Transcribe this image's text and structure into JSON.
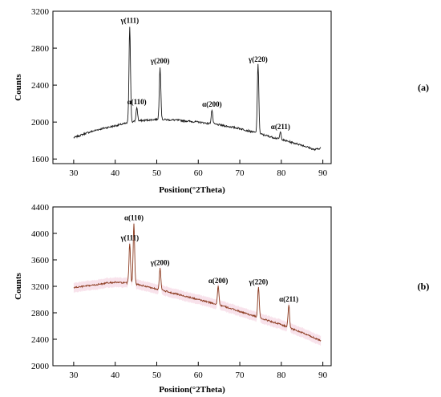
{
  "chart_data": [
    {
      "type": "line",
      "panel_label": "(a)",
      "xlabel": "Position(°2Theta)",
      "ylabel": "Counts",
      "xlim": [
        25,
        92
      ],
      "ylim": [
        1550,
        3200
      ],
      "x_ticks": [
        30,
        40,
        50,
        60,
        70,
        80,
        90
      ],
      "y_ticks": [
        1600,
        2000,
        2400,
        2800,
        3200
      ],
      "line_color": "#1a1a1a",
      "fill_color": null,
      "baseline": [
        [
          30,
          1830
        ],
        [
          33,
          1880
        ],
        [
          36,
          1920
        ],
        [
          40,
          1960
        ],
        [
          45,
          2010
        ],
        [
          50,
          2030
        ],
        [
          55,
          2020
        ],
        [
          60,
          2000
        ],
        [
          65,
          1970
        ],
        [
          70,
          1930
        ],
        [
          75,
          1870
        ],
        [
          80,
          1810
        ],
        [
          85,
          1750
        ],
        [
          88,
          1700
        ],
        [
          89.5,
          1720
        ]
      ],
      "noise": 10,
      "peaks": [
        {
          "x": 43.5,
          "y": 3040,
          "label": "γ(111)"
        },
        {
          "x": 45.2,
          "y": 2160,
          "label": "α(110)"
        },
        {
          "x": 50.8,
          "y": 2600,
          "label": "γ(200)"
        },
        {
          "x": 63.3,
          "y": 2130,
          "label": "α(200)"
        },
        {
          "x": 74.4,
          "y": 2620,
          "label": "γ(220)"
        },
        {
          "x": 79.8,
          "y": 1890,
          "label": "α(211)"
        }
      ]
    },
    {
      "type": "line",
      "panel_label": "(b)",
      "xlabel": "Position(°2Theta)",
      "ylabel": "Counts",
      "xlim": [
        25,
        92
      ],
      "ylim": [
        2000,
        4400
      ],
      "x_ticks": [
        30,
        40,
        50,
        60,
        70,
        80,
        90
      ],
      "y_ticks": [
        2000,
        2400,
        2800,
        3200,
        3600,
        4000,
        4400
      ],
      "line_color": "#8b3a1e",
      "fill_color": "#f6dbe6",
      "baseline": [
        [
          30,
          3180
        ],
        [
          35,
          3220
        ],
        [
          38,
          3250
        ],
        [
          40,
          3260
        ],
        [
          43,
          3250
        ],
        [
          46,
          3220
        ],
        [
          50,
          3160
        ],
        [
          55,
          3080
        ],
        [
          60,
          3000
        ],
        [
          65,
          2920
        ],
        [
          70,
          2820
        ],
        [
          75,
          2720
        ],
        [
          80,
          2620
        ],
        [
          85,
          2500
        ],
        [
          89.5,
          2380
        ]
      ],
      "noise": 12,
      "peaks": [
        {
          "x": 43.5,
          "y": 3850,
          "label": "γ(111)"
        },
        {
          "x": 44.5,
          "y": 4150,
          "label": "α(110)"
        },
        {
          "x": 50.8,
          "y": 3470,
          "label": "γ(200)"
        },
        {
          "x": 64.8,
          "y": 3200,
          "label": "α(200)"
        },
        {
          "x": 74.5,
          "y": 3180,
          "label": "γ(220)"
        },
        {
          "x": 81.8,
          "y": 2920,
          "label": "α(211)"
        }
      ]
    }
  ]
}
